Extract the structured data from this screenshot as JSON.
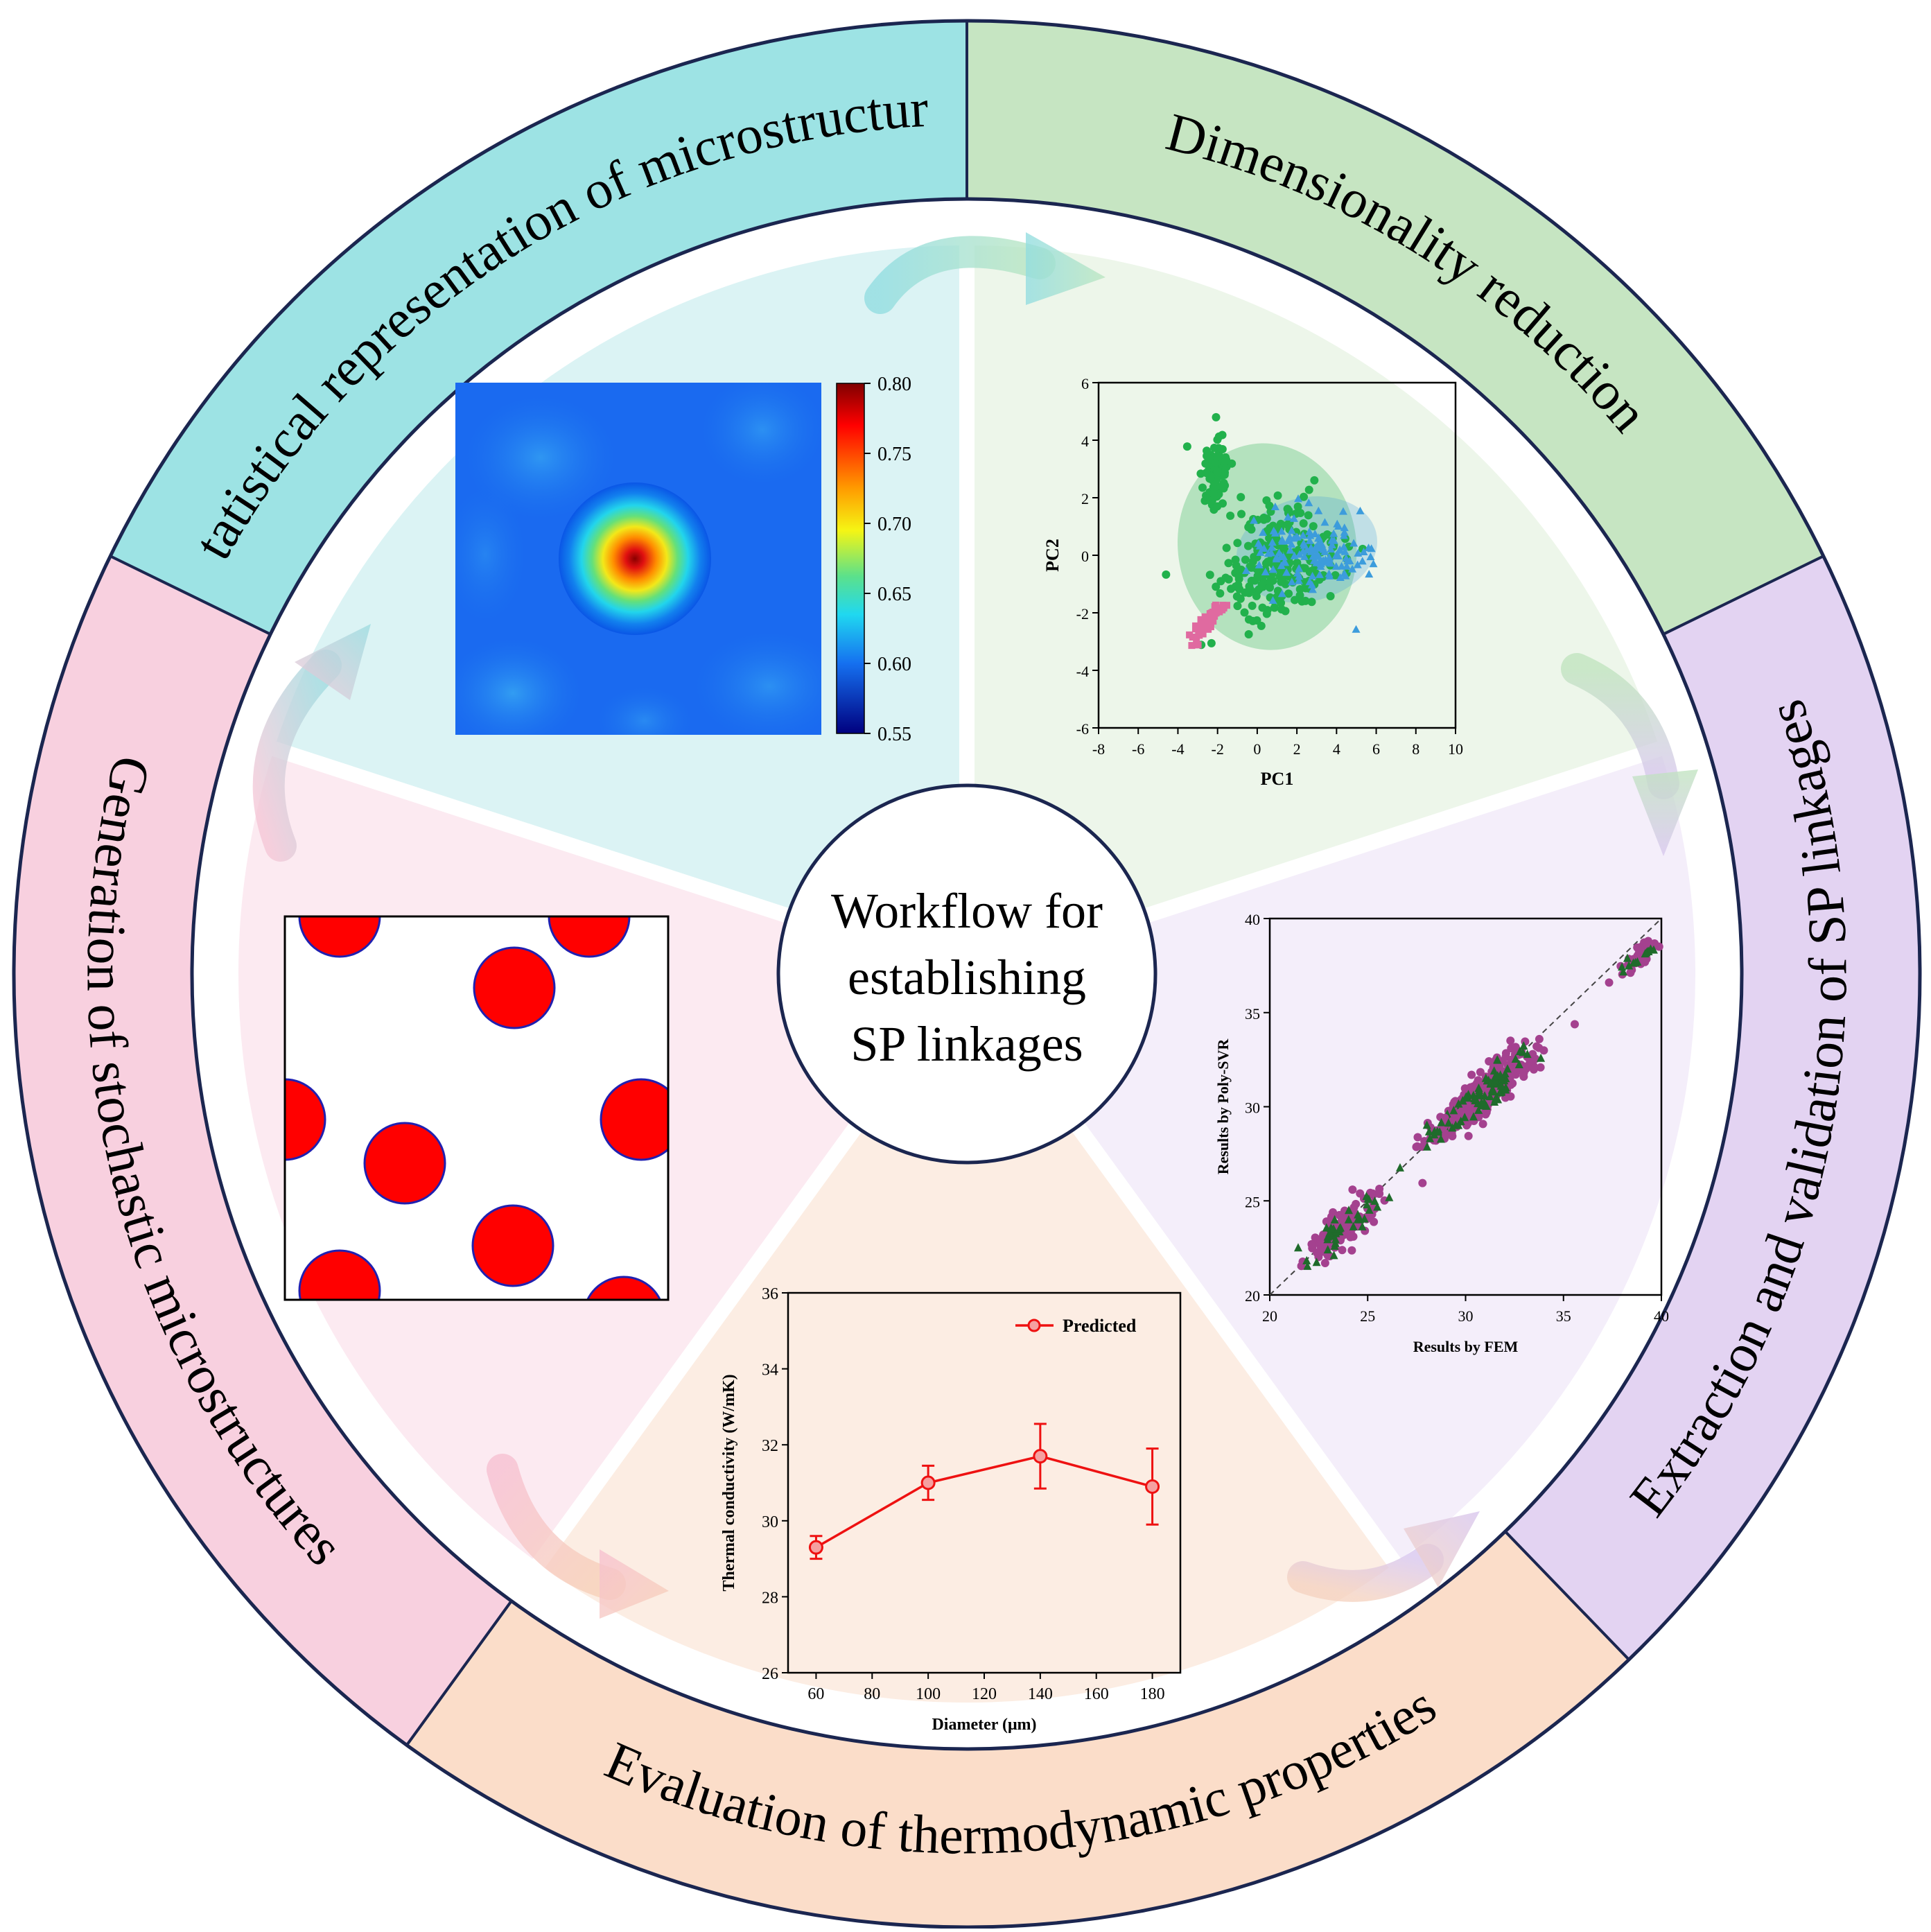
{
  "colors": {
    "teal": "#9DE3E4",
    "green": "#C6E5C2",
    "purple": "#E3D3F2",
    "orange": "#FBDDC9",
    "pink": "#F8D0DF",
    "teal_inner": "#DBF3F4",
    "green_inner": "#EDF6EA",
    "purple_inner": "#F4EEFA",
    "orange_inner": "#FCEDE3",
    "pink_inner": "#FCEAF1",
    "outline": "#1B2650"
  },
  "center": {
    "line1": "Workflow for",
    "line2": "establishing",
    "line3": "SP linkages"
  },
  "ring": {
    "statistical": "Statistical representation of microstructure",
    "dimensionality": "Dimensionality reduction",
    "extraction": "Extraction and validation of SP linkages",
    "evaluation": "Evaluation of thermodynamic properties",
    "generation": "Generation of stochastic microstructures"
  },
  "heatmap": {
    "colorbar_ticks": [
      "0.80",
      "0.75",
      "0.70",
      "0.65",
      "0.60",
      "0.55"
    ],
    "colormap": "jet",
    "range": [
      0.55,
      0.8
    ]
  },
  "microstructure": {
    "fill": "#FF0000",
    "edge": "#2020B0"
  },
  "chart_data": [
    {
      "id": "pca",
      "type": "scatter",
      "xlabel": "PC1",
      "ylabel": "PC2",
      "xlim": [
        -8,
        10
      ],
      "ylim": [
        -6,
        6
      ],
      "xticks": [
        "-8",
        "-6",
        "-4",
        "-2",
        "0",
        "2",
        "4",
        "6",
        "8",
        "10"
      ],
      "yticks": [
        "6",
        "4",
        "2",
        "0",
        "-2",
        "-4",
        "-6"
      ],
      "series": [
        {
          "color": "#22B14C",
          "marker": "circle",
          "approx_center": [
            0.5,
            0.3
          ],
          "ellipse_rx": 4.5,
          "ellipse_ry": 3.6
        },
        {
          "color": "#3C9CDC",
          "marker": "triangle",
          "approx_center": [
            2.5,
            0.2
          ],
          "ellipse_rx": 3.6,
          "ellipse_ry": 1.8
        },
        {
          "color": "#E06AA0",
          "marker": "square",
          "approx_center": [
            -3.0,
            -2.4
          ]
        }
      ]
    },
    {
      "id": "parity",
      "type": "scatter",
      "xlabel": "Results by FEM",
      "ylabel": "Results by Poly-SVR",
      "xlim": [
        20,
        40
      ],
      "ylim": [
        20,
        40
      ],
      "xticks": [
        "20",
        "25",
        "30",
        "35",
        "40"
      ],
      "yticks": [
        "40",
        "35",
        "30",
        "25",
        "20"
      ],
      "clusters": [
        {
          "center": [
            23.7,
            23.6
          ],
          "spread": 1.0
        },
        {
          "center": [
            29.5,
            29.5
          ],
          "spread": 0.8
        },
        {
          "center": [
            31.3,
            31.0
          ],
          "spread": 1.1
        },
        {
          "center": [
            39.0,
            38.0
          ],
          "spread": 0.5
        }
      ],
      "series": [
        {
          "color": "#A4418F",
          "marker": "circle"
        },
        {
          "color": "#1F6B2B",
          "marker": "triangle"
        }
      ],
      "reference": "y = x"
    },
    {
      "id": "conductivity",
      "type": "line",
      "xlabel": "Diameter (μm)",
      "ylabel": "Thermal conductivity (W/mK)",
      "legend": "Predicted",
      "legend_position": "top-right",
      "x": [
        60,
        100,
        140,
        180
      ],
      "y": [
        29.3,
        31.0,
        31.7,
        30.9
      ],
      "yerr": [
        0.3,
        0.45,
        0.85,
        1.0
      ],
      "xlim": [
        50,
        190
      ],
      "ylim": [
        26,
        36
      ],
      "xticks": [
        "60",
        "80",
        "100",
        "120",
        "140",
        "160",
        "180"
      ],
      "yticks": [
        "36",
        "34",
        "32",
        "30",
        "28",
        "26"
      ],
      "color": "#EE1111"
    }
  ]
}
